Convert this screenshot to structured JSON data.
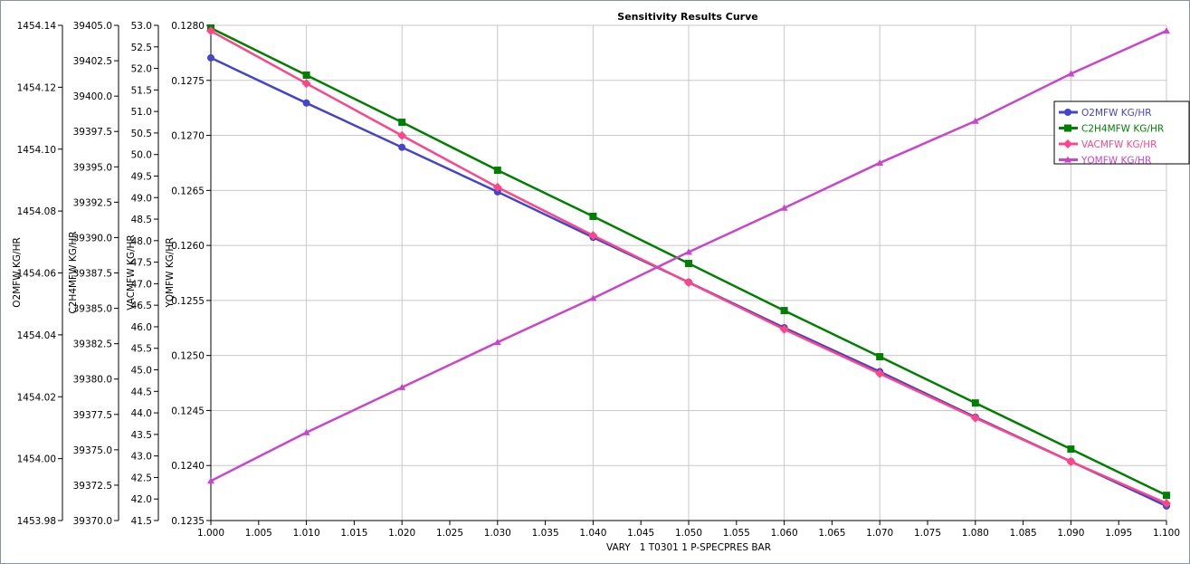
{
  "chart_data": {
    "type": "line",
    "title": "Sensitivity Results Curve",
    "xlabel": "VARY   1 T0301 1 P-SPECPRES BAR",
    "xlim": [
      1.0,
      1.1
    ],
    "xticks": [
      "1.000",
      "1.005",
      "1.010",
      "1.015",
      "1.020",
      "1.025",
      "1.030",
      "1.035",
      "1.040",
      "1.045",
      "1.050",
      "1.055",
      "1.060",
      "1.065",
      "1.070",
      "1.075",
      "1.080",
      "1.085",
      "1.090",
      "1.095",
      "1.100"
    ],
    "x": [
      1.0,
      1.01,
      1.02,
      1.03,
      1.04,
      1.05,
      1.06,
      1.07,
      1.08,
      1.09,
      1.1
    ],
    "grid": true,
    "legend_position": "top-right",
    "axes": [
      {
        "label": "O2MFW KG/HR",
        "ylim": [
          1453.98,
          1454.14
        ],
        "ticks": [
          "1453.98",
          "1454.00",
          "1454.02",
          "1454.04",
          "1454.06",
          "1454.08",
          "1454.10",
          "1454.12",
          "1454.14"
        ]
      },
      {
        "label": "C2H4MFW KG/HR",
        "ylim": [
          39370.0,
          39405.0
        ],
        "ticks": [
          "39370.0",
          "39372.5",
          "39375.0",
          "39377.5",
          "39380.0",
          "39382.5",
          "39385.0",
          "39387.5",
          "39390.0",
          "39392.5",
          "39395.0",
          "39397.5",
          "39400.0",
          "39402.5",
          "39405.0"
        ]
      },
      {
        "label": "VACMFW KG/HR",
        "ylim": [
          41.5,
          53.0
        ],
        "ticks": [
          "41.5",
          "42.0",
          "42.5",
          "43.0",
          "43.5",
          "44.0",
          "44.5",
          "45.0",
          "45.5",
          "46.0",
          "46.5",
          "47.0",
          "47.5",
          "48.0",
          "48.5",
          "49.0",
          "49.5",
          "50.0",
          "50.5",
          "51.0",
          "51.5",
          "52.0",
          "52.5",
          "53.0"
        ]
      },
      {
        "label": "YQMFW KG/HR",
        "ylim": [
          0.1235,
          0.128
        ],
        "ticks": [
          "0.1235",
          "0.1240",
          "0.1245",
          "0.1250",
          "0.1255",
          "0.1260",
          "0.1265",
          "0.1270",
          "0.1275",
          "0.1280"
        ]
      }
    ],
    "series": [
      {
        "name": "O2MFW KG/HR",
        "axis": 0,
        "color": "#4444cc",
        "marker": "circle",
        "values": [
          1454.1295,
          1454.1149,
          1454.1006,
          1454.0862,
          1454.0715,
          1454.057,
          1454.0423,
          1454.0281,
          1454.0134,
          1453.9991,
          1453.9847
        ]
      },
      {
        "name": "C2H4MFW KG/HR",
        "axis": 1,
        "color": "#008000",
        "marker": "square",
        "values": [
          39404.81,
          39401.48,
          39398.15,
          39394.76,
          39391.5,
          39388.17,
          39384.84,
          39381.58,
          39378.31,
          39375.05,
          39371.78
        ]
      },
      {
        "name": "VACMFW KG/HR",
        "axis": 2,
        "color": "#ff4488",
        "marker": "diamond",
        "values": [
          52.87,
          51.65,
          50.44,
          49.24,
          48.12,
          47.03,
          45.94,
          44.91,
          43.88,
          42.87,
          41.9
        ]
      },
      {
        "name": "YQMFW KG/HR",
        "axis": 3,
        "color": "#cc44cc",
        "marker": "triangle",
        "values": [
          0.12386,
          0.1243,
          0.12471,
          0.12512,
          0.12552,
          0.12594,
          0.12634,
          0.12675,
          0.12713,
          0.12756,
          0.12795
        ]
      }
    ]
  }
}
